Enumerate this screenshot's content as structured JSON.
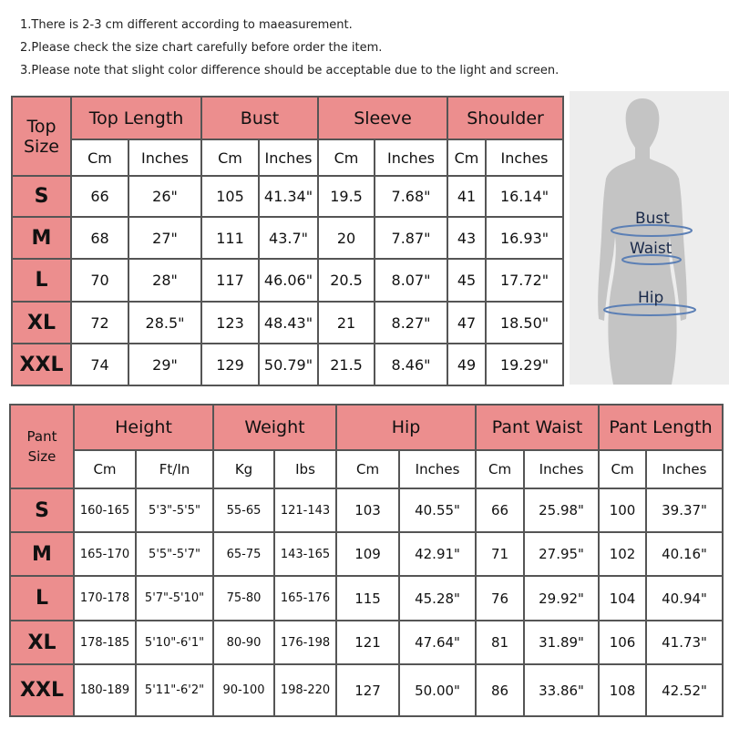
{
  "notes": [
    "1.There is 2-3 cm different according to maeasurement.",
    "2.Please check the size chart carefully before order the item.",
    "3.Please note that slight color difference should be acceptable due to the light and screen."
  ],
  "colors": {
    "header_pink": "#ec8e8e",
    "border": "#555555",
    "figure_bg": "#ededed"
  },
  "top_table": {
    "corner": "Top Size",
    "groups": [
      "Top Length",
      "Bust",
      "Sleeve",
      "Shoulder"
    ],
    "units": [
      "Cm",
      "Inches",
      "Cm",
      "Inches",
      "Cm",
      "Inches",
      "Cm",
      "Inches"
    ],
    "rows": [
      {
        "size": "S",
        "values": [
          "66",
          "26\"",
          "105",
          "41.34\"",
          "19.5",
          "7.68\"",
          "41",
          "16.14\""
        ]
      },
      {
        "size": "M",
        "values": [
          "68",
          "27\"",
          "111",
          "43.7\"",
          "20",
          "7.87\"",
          "43",
          "16.93\""
        ]
      },
      {
        "size": "L",
        "values": [
          "70",
          "28\"",
          "117",
          "46.06\"",
          "20.5",
          "8.07\"",
          "45",
          "17.72\""
        ]
      },
      {
        "size": "XL",
        "values": [
          "72",
          "28.5\"",
          "123",
          "48.43\"",
          "21",
          "8.27\"",
          "47",
          "18.50\""
        ]
      },
      {
        "size": "XXL",
        "values": [
          "74",
          "29\"",
          "129",
          "50.79\"",
          "21.5",
          "8.46\"",
          "49",
          "19.29\""
        ]
      }
    ]
  },
  "figure": {
    "labels": [
      "Bust",
      "Waist",
      "Hip"
    ]
  },
  "pant_table": {
    "corner": "Pant Size",
    "groups": [
      "Height",
      "Weight",
      "Hip",
      "Pant Waist",
      "Pant Length"
    ],
    "units": [
      "Cm",
      "Ft/In",
      "Kg",
      "Ibs",
      "Cm",
      "Inches",
      "Cm",
      "Inches",
      "Cm",
      "Inches"
    ],
    "rows": [
      {
        "size": "S",
        "values": [
          "160-165",
          "5'3\"-5'5\"",
          "55-65",
          "121-143",
          "103",
          "40.55\"",
          "66",
          "25.98\"",
          "100",
          "39.37\""
        ]
      },
      {
        "size": "M",
        "values": [
          "165-170",
          "5'5\"-5'7\"",
          "65-75",
          "143-165",
          "109",
          "42.91\"",
          "71",
          "27.95\"",
          "102",
          "40.16\""
        ]
      },
      {
        "size": "L",
        "values": [
          "170-178",
          "5'7\"-5'10\"",
          "75-80",
          "165-176",
          "115",
          "45.28\"",
          "76",
          "29.92\"",
          "104",
          "40.94\""
        ]
      },
      {
        "size": "XL",
        "values": [
          "178-185",
          "5'10\"-6'1\"",
          "80-90",
          "176-198",
          "121",
          "47.64\"",
          "81",
          "31.89\"",
          "106",
          "41.73\""
        ]
      },
      {
        "size": "XXL",
        "values": [
          "180-189",
          "5'11\"-6'2\"",
          "90-100",
          "198-220",
          "127",
          "50.00\"",
          "86",
          "33.86\"",
          "108",
          "42.52\""
        ]
      }
    ]
  }
}
